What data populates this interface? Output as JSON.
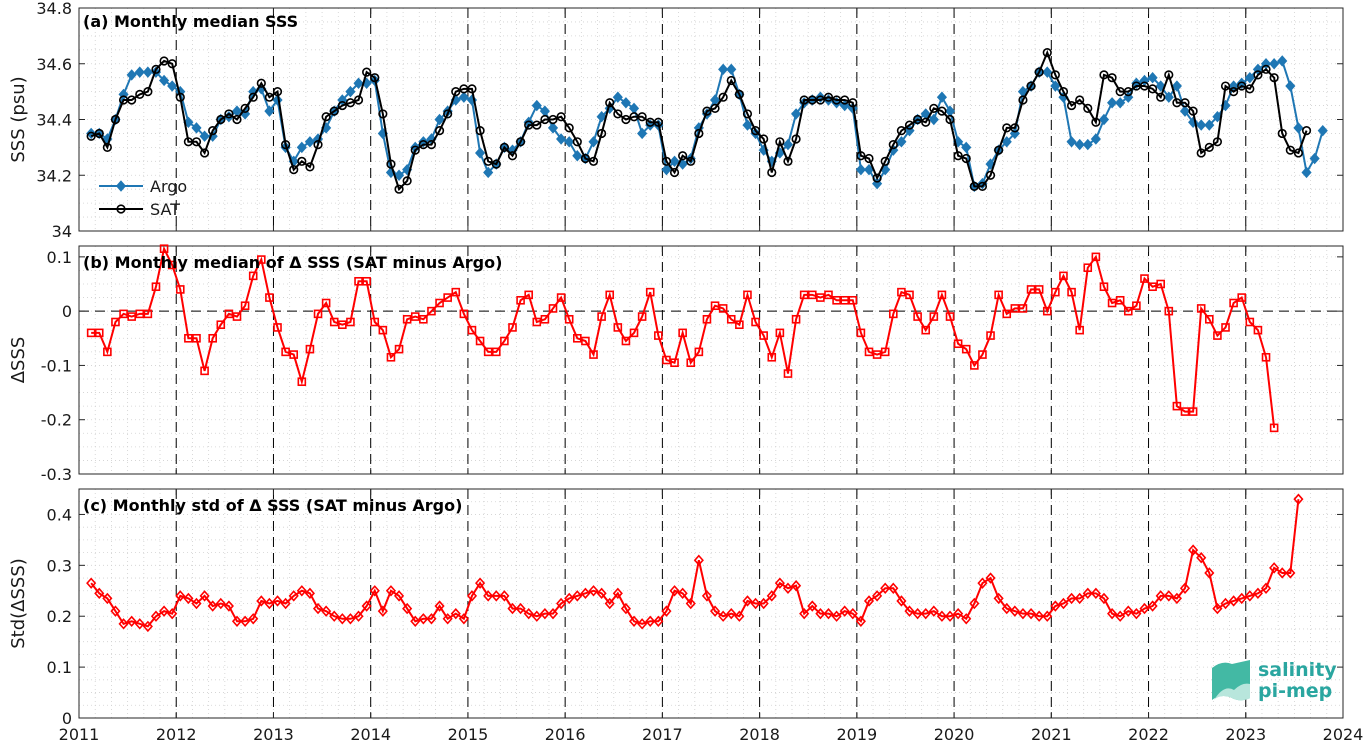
{
  "chart_data": [
    {
      "type": "line",
      "title": "(a) Monthly median SSS",
      "ylabel": "SSS (psu)",
      "xlim": [
        2011,
        2024
      ],
      "ylim": [
        34.0,
        34.8
      ],
      "yticks": [
        "34",
        "34.2",
        "34.4",
        "34.6",
        "34.8"
      ],
      "grid": true,
      "legend_position": "bottom-left",
      "year_start": 2011,
      "series": [
        {
          "name": "Argo",
          "color": "#1f77b4",
          "marker": "diamond",
          "values": [
            34.35,
            34.35,
            34.33,
            34.4,
            34.49,
            34.56,
            34.57,
            34.57,
            34.57,
            34.54,
            34.52,
            34.5,
            34.39,
            34.37,
            34.34,
            34.34,
            34.4,
            34.41,
            34.43,
            34.42,
            34.5,
            34.51,
            34.43,
            34.47,
            34.3,
            34.25,
            34.3,
            34.32,
            34.33,
            34.37,
            34.43,
            34.47,
            34.5,
            34.53,
            34.53,
            34.54,
            34.35,
            34.21,
            34.2,
            34.22,
            34.3,
            34.32,
            34.33,
            34.4,
            34.43,
            34.47,
            34.48,
            34.47,
            34.28,
            34.21,
            34.24,
            34.3,
            34.29,
            34.32,
            34.39,
            34.45,
            34.43,
            34.37,
            34.33,
            34.32,
            34.27,
            34.26,
            34.32,
            34.41,
            34.44,
            34.48,
            34.46,
            34.44,
            34.35,
            34.38,
            34.38,
            34.22,
            34.25,
            34.24,
            34.26,
            34.37,
            34.42,
            34.47,
            34.58,
            34.58,
            34.49,
            34.38,
            34.35,
            34.29,
            34.25,
            34.28,
            34.31,
            34.42,
            34.46,
            34.47,
            34.48,
            34.47,
            34.46,
            34.45,
            34.44,
            34.22,
            34.22,
            34.17,
            34.22,
            34.29,
            34.32,
            34.36,
            34.4,
            34.42,
            34.4,
            34.48,
            34.43,
            34.32,
            34.3,
            34.16,
            34.17,
            34.24,
            34.29,
            34.32,
            34.35,
            34.5,
            34.52,
            34.57,
            34.57,
            34.52,
            34.48,
            34.32,
            34.31,
            34.31,
            34.33,
            34.4,
            34.46,
            34.46,
            34.48,
            34.53,
            34.54,
            34.55,
            34.52,
            34.48,
            34.52,
            34.43,
            34.39,
            34.38,
            34.38,
            34.41,
            34.45,
            34.52,
            34.53,
            34.55,
            34.58,
            34.6,
            34.6,
            34.61,
            34.52,
            34.37,
            34.21,
            34.26,
            34.36
          ]
        },
        {
          "name": "SAT",
          "color": "#000000",
          "marker": "circle",
          "values": [
            34.34,
            34.35,
            34.3,
            34.4,
            34.47,
            34.47,
            34.49,
            34.5,
            34.58,
            34.61,
            34.6,
            34.48,
            34.32,
            34.32,
            34.28,
            34.36,
            34.4,
            34.42,
            34.4,
            34.44,
            34.48,
            34.53,
            34.48,
            34.5,
            34.31,
            34.22,
            34.25,
            34.23,
            34.31,
            34.41,
            34.43,
            34.45,
            34.46,
            34.47,
            34.57,
            34.55,
            34.42,
            34.24,
            34.15,
            34.18,
            34.29,
            34.31,
            34.31,
            34.36,
            34.42,
            34.5,
            34.51,
            34.51,
            34.36,
            34.25,
            34.24,
            34.3,
            34.27,
            34.32,
            34.38,
            34.38,
            34.4,
            34.4,
            34.41,
            34.37,
            34.32,
            34.26,
            34.25,
            34.35,
            34.46,
            34.42,
            34.4,
            34.41,
            34.41,
            34.39,
            34.39,
            34.25,
            34.21,
            34.27,
            34.25,
            34.35,
            34.43,
            34.44,
            34.48,
            34.54,
            34.49,
            34.42,
            34.36,
            34.33,
            34.21,
            34.32,
            34.25,
            34.33,
            34.47,
            34.47,
            34.47,
            34.48,
            34.47,
            34.47,
            34.46,
            34.27,
            34.26,
            34.19,
            34.25,
            34.31,
            34.36,
            34.38,
            34.4,
            34.39,
            34.44,
            34.43,
            34.4,
            34.27,
            34.26,
            34.16,
            34.16,
            34.2,
            34.29,
            34.37,
            34.37,
            34.47,
            34.52,
            34.57,
            34.64,
            34.56,
            34.5,
            34.45,
            34.47,
            34.44,
            34.39,
            34.56,
            34.55,
            34.5,
            34.5,
            34.52,
            34.52,
            34.51,
            34.48,
            34.56,
            34.46,
            34.46,
            34.43,
            34.28,
            34.3,
            34.32,
            34.52,
            34.5,
            34.52,
            34.51,
            34.56,
            34.58,
            34.55,
            34.35,
            34.29,
            34.28,
            34.36
          ]
        }
      ]
    },
    {
      "type": "line",
      "title": "(b) Monthly median of Δ SSS (SAT minus Argo)",
      "ylabel": "ΔSSS",
      "xlim": [
        2011,
        2024
      ],
      "ylim": [
        -0.3,
        0.12
      ],
      "yticks": [
        "-0.3",
        "-0.2",
        "-0.1",
        "0",
        "0.1"
      ],
      "zero_line": true,
      "grid": true,
      "year_start": 2011,
      "series": [
        {
          "name": "",
          "color": "#ff0000",
          "marker": "square",
          "values": [
            -0.04,
            -0.04,
            -0.075,
            -0.02,
            -0.005,
            -0.01,
            -0.005,
            -0.005,
            0.045,
            0.115,
            0.085,
            0.04,
            -0.05,
            -0.05,
            -0.11,
            -0.05,
            -0.025,
            -0.005,
            -0.01,
            0.01,
            0.065,
            0.095,
            0.025,
            -0.03,
            -0.075,
            -0.08,
            -0.13,
            -0.07,
            -0.005,
            0.015,
            -0.02,
            -0.025,
            -0.02,
            0.055,
            0.055,
            -0.02,
            -0.035,
            -0.085,
            -0.07,
            -0.015,
            -0.01,
            -0.015,
            0.0,
            0.015,
            0.025,
            0.035,
            -0.005,
            -0.035,
            -0.055,
            -0.075,
            -0.075,
            -0.055,
            -0.03,
            0.02,
            0.03,
            -0.02,
            -0.015,
            0.005,
            0.025,
            -0.015,
            -0.05,
            -0.055,
            -0.08,
            -0.01,
            0.03,
            -0.03,
            -0.055,
            -0.04,
            -0.01,
            0.035,
            -0.045,
            -0.09,
            -0.095,
            -0.04,
            -0.095,
            -0.075,
            -0.015,
            0.01,
            0.005,
            -0.015,
            -0.025,
            0.03,
            -0.02,
            -0.045,
            -0.085,
            -0.04,
            -0.115,
            -0.015,
            0.03,
            0.03,
            0.025,
            0.03,
            0.02,
            0.02,
            0.02,
            -0.04,
            -0.075,
            -0.08,
            -0.075,
            -0.005,
            0.035,
            0.03,
            -0.01,
            -0.035,
            -0.01,
            0.03,
            -0.01,
            -0.06,
            -0.07,
            -0.1,
            -0.08,
            -0.045,
            0.03,
            -0.005,
            0.005,
            0.005,
            0.04,
            0.04,
            0.0,
            0.035,
            0.065,
            0.035,
            -0.035,
            0.08,
            0.1,
            0.045,
            0.015,
            0.02,
            0.0,
            0.01,
            0.06,
            0.045,
            0.05,
            0.0,
            -0.175,
            -0.185,
            -0.185,
            0.005,
            -0.015,
            -0.045,
            -0.03,
            0.015,
            0.025,
            -0.02,
            -0.035,
            -0.085,
            -0.215
          ]
        }
      ]
    },
    {
      "type": "line",
      "title": "(c) Monthly std of Δ SSS (SAT minus Argo)",
      "ylabel": "Std(ΔSSS)",
      "xlabel": "",
      "xlim": [
        2011,
        2024
      ],
      "ylim": [
        0,
        0.45
      ],
      "yticks": [
        "0",
        "0.1",
        "0.2",
        "0.3",
        "0.4"
      ],
      "xticks": [
        "2011",
        "2012",
        "2013",
        "2014",
        "2015",
        "2016",
        "2017",
        "2018",
        "2019",
        "2020",
        "2021",
        "2022",
        "2023",
        "2024"
      ],
      "grid": true,
      "year_start": 2011,
      "series": [
        {
          "name": "",
          "color": "#ff0000",
          "marker": "diamond",
          "values": [
            0.265,
            0.245,
            0.235,
            0.21,
            0.185,
            0.19,
            0.185,
            0.18,
            0.2,
            0.21,
            0.205,
            0.24,
            0.235,
            0.225,
            0.24,
            0.22,
            0.225,
            0.22,
            0.19,
            0.19,
            0.195,
            0.23,
            0.225,
            0.23,
            0.225,
            0.24,
            0.25,
            0.245,
            0.215,
            0.21,
            0.2,
            0.195,
            0.195,
            0.2,
            0.22,
            0.25,
            0.21,
            0.25,
            0.24,
            0.215,
            0.19,
            0.195,
            0.195,
            0.22,
            0.195,
            0.205,
            0.195,
            0.24,
            0.265,
            0.24,
            0.24,
            0.24,
            0.215,
            0.215,
            0.205,
            0.2,
            0.205,
            0.205,
            0.225,
            0.235,
            0.24,
            0.245,
            0.25,
            0.245,
            0.225,
            0.245,
            0.215,
            0.19,
            0.185,
            0.19,
            0.19,
            0.21,
            0.25,
            0.245,
            0.225,
            0.31,
            0.24,
            0.21,
            0.2,
            0.205,
            0.2,
            0.23,
            0.225,
            0.225,
            0.24,
            0.265,
            0.255,
            0.26,
            0.205,
            0.22,
            0.205,
            0.205,
            0.2,
            0.21,
            0.205,
            0.19,
            0.23,
            0.24,
            0.255,
            0.255,
            0.23,
            0.21,
            0.205,
            0.205,
            0.21,
            0.2,
            0.2,
            0.205,
            0.195,
            0.225,
            0.265,
            0.275,
            0.235,
            0.215,
            0.21,
            0.205,
            0.205,
            0.2,
            0.2,
            0.22,
            0.225,
            0.235,
            0.235,
            0.245,
            0.245,
            0.235,
            0.205,
            0.2,
            0.21,
            0.205,
            0.215,
            0.22,
            0.24,
            0.24,
            0.235,
            0.255,
            0.33,
            0.315,
            0.285,
            0.215,
            0.225,
            0.23,
            0.235,
            0.24,
            0.245,
            0.255,
            0.295,
            0.285,
            0.285,
            0.43
          ]
        }
      ]
    }
  ],
  "legend": {
    "items": [
      "Argo",
      "SAT"
    ]
  },
  "logo": {
    "line1": "salinity",
    "line2": "pi-mep"
  }
}
